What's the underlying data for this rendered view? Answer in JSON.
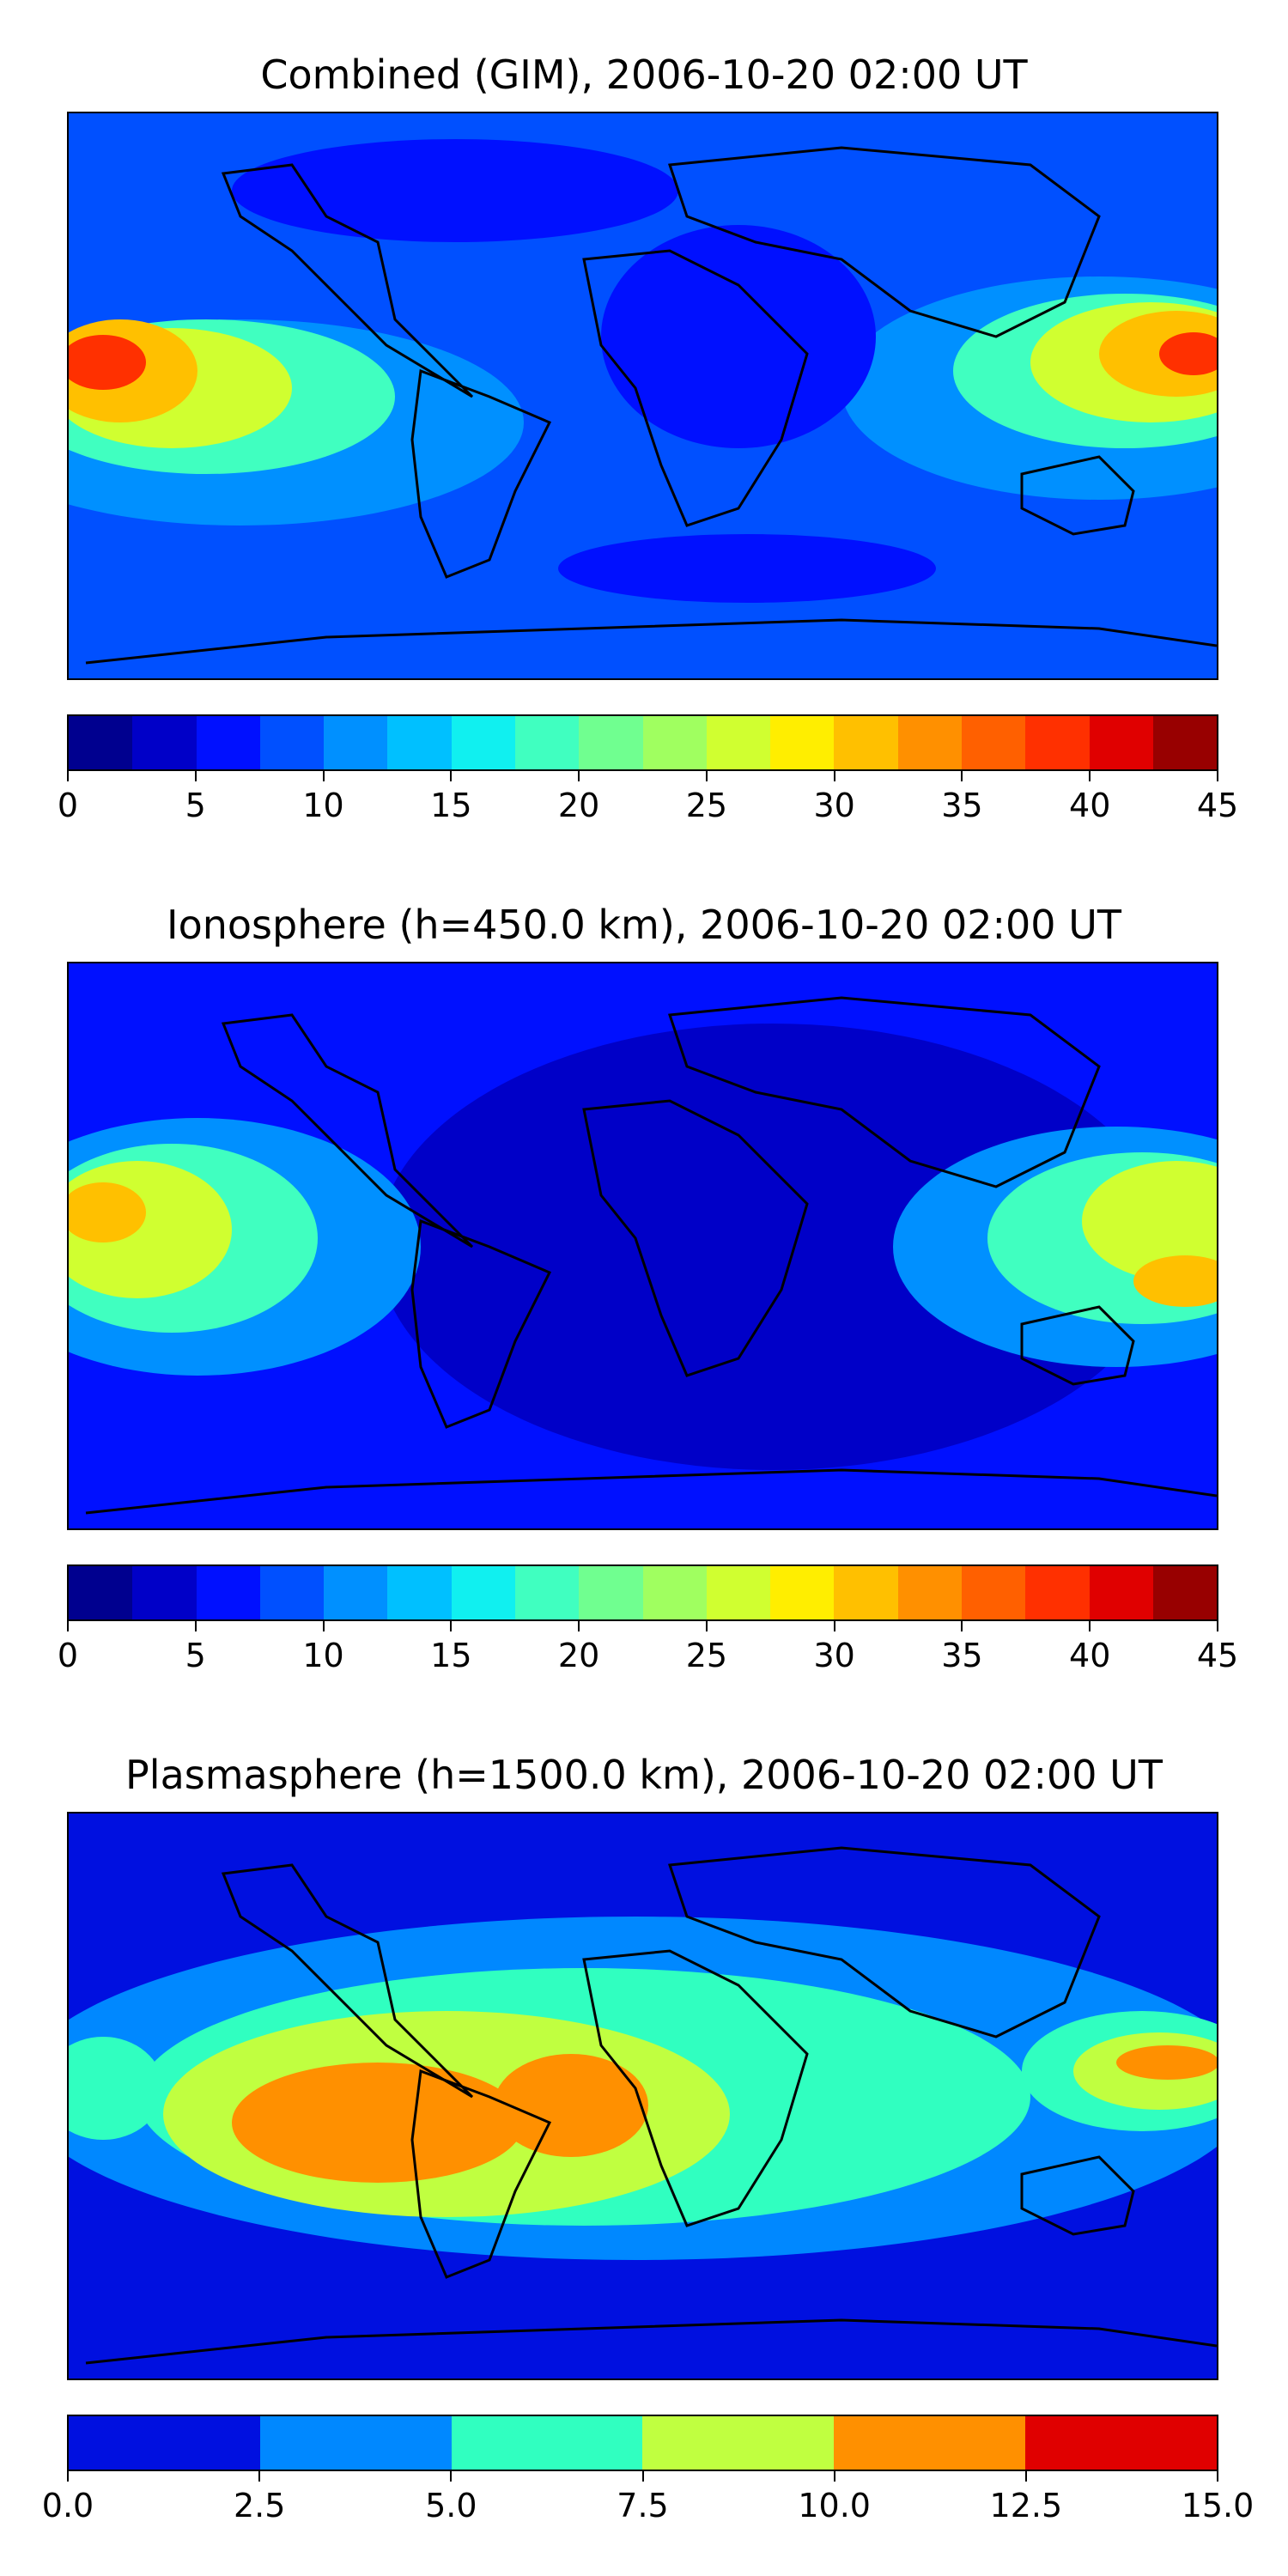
{
  "panels": [
    {
      "title": "Combined (GIM), 2006-10-20 02:00 UT",
      "colorbar": {
        "colors": [
          "#00008f",
          "#0000c8",
          "#0010ff",
          "#0050ff",
          "#0090ff",
          "#00c0ff",
          "#10f0f0",
          "#40ffc0",
          "#70ff90",
          "#a0ff60",
          "#d0ff30",
          "#ffee00",
          "#ffc000",
          "#ff9000",
          "#ff6000",
          "#ff3000",
          "#e00000",
          "#980000"
        ],
        "ticks": [
          "0",
          "5",
          "10",
          "15",
          "20",
          "25",
          "30",
          "35",
          "40",
          "45"
        ]
      }
    },
    {
      "title": "Ionosphere  (h=450.0 km), 2006-10-20 02:00 UT",
      "colorbar": {
        "colors": [
          "#00008f",
          "#0000c8",
          "#0010ff",
          "#0050ff",
          "#0090ff",
          "#00c0ff",
          "#10f0f0",
          "#40ffc0",
          "#70ff90",
          "#a0ff60",
          "#d0ff30",
          "#ffee00",
          "#ffc000",
          "#ff9000",
          "#ff6000",
          "#ff3000",
          "#e00000",
          "#980000"
        ],
        "ticks": [
          "0",
          "5",
          "10",
          "15",
          "20",
          "25",
          "30",
          "35",
          "40",
          "45"
        ]
      }
    },
    {
      "title": "Plasmasphere (h=1500.0 km), 2006-10-20 02:00 UT",
      "colorbar": {
        "colors": [
          "#0010e0",
          "#0088ff",
          "#30ffc0",
          "#c0ff40",
          "#ff9000",
          "#e00000"
        ],
        "ticks": [
          "0.0",
          "2.5",
          "5.0",
          "7.5",
          "10.0",
          "12.5",
          "15.0"
        ]
      }
    }
  ]
}
